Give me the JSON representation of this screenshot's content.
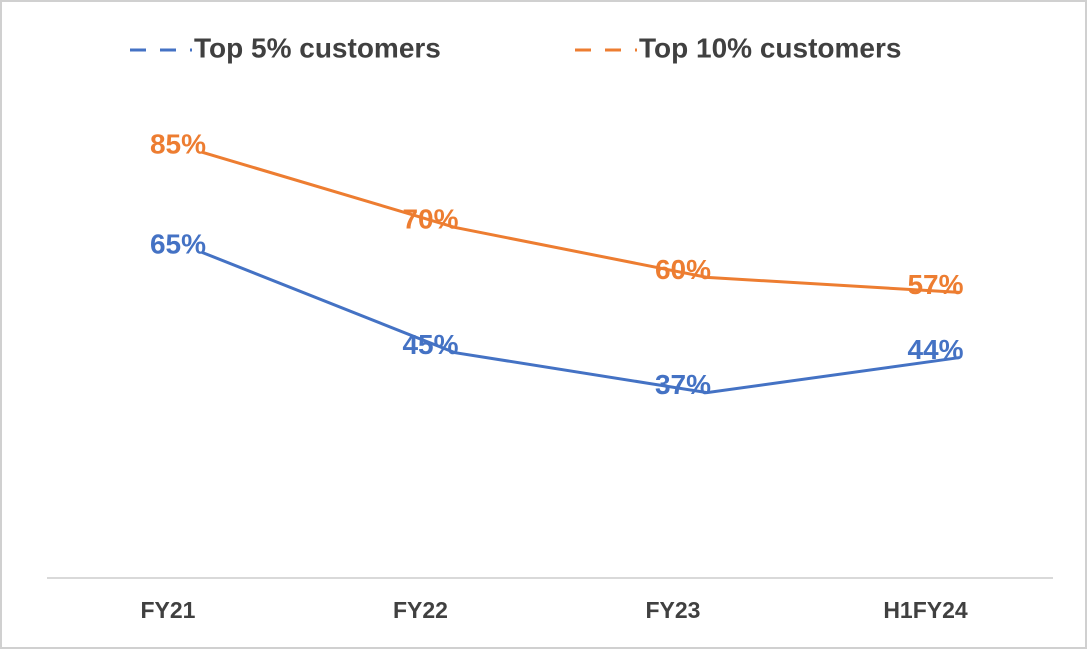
{
  "chart_data": {
    "type": "line",
    "categories": [
      "FY21",
      "FY22",
      "FY23",
      "H1FY24"
    ],
    "series": [
      {
        "name": "Top 5% customers",
        "color": "#4472c4",
        "values": [
          65,
          45,
          37,
          44
        ],
        "value_labels": [
          "65%",
          "45%",
          "37%",
          "44%"
        ]
      },
      {
        "name": "Top 10% customers",
        "color": "#ed7d31",
        "values": [
          85,
          70,
          60,
          57
        ],
        "value_labels": [
          "85%",
          "70%",
          "60%",
          "57%"
        ]
      }
    ],
    "legend": "top"
  }
}
